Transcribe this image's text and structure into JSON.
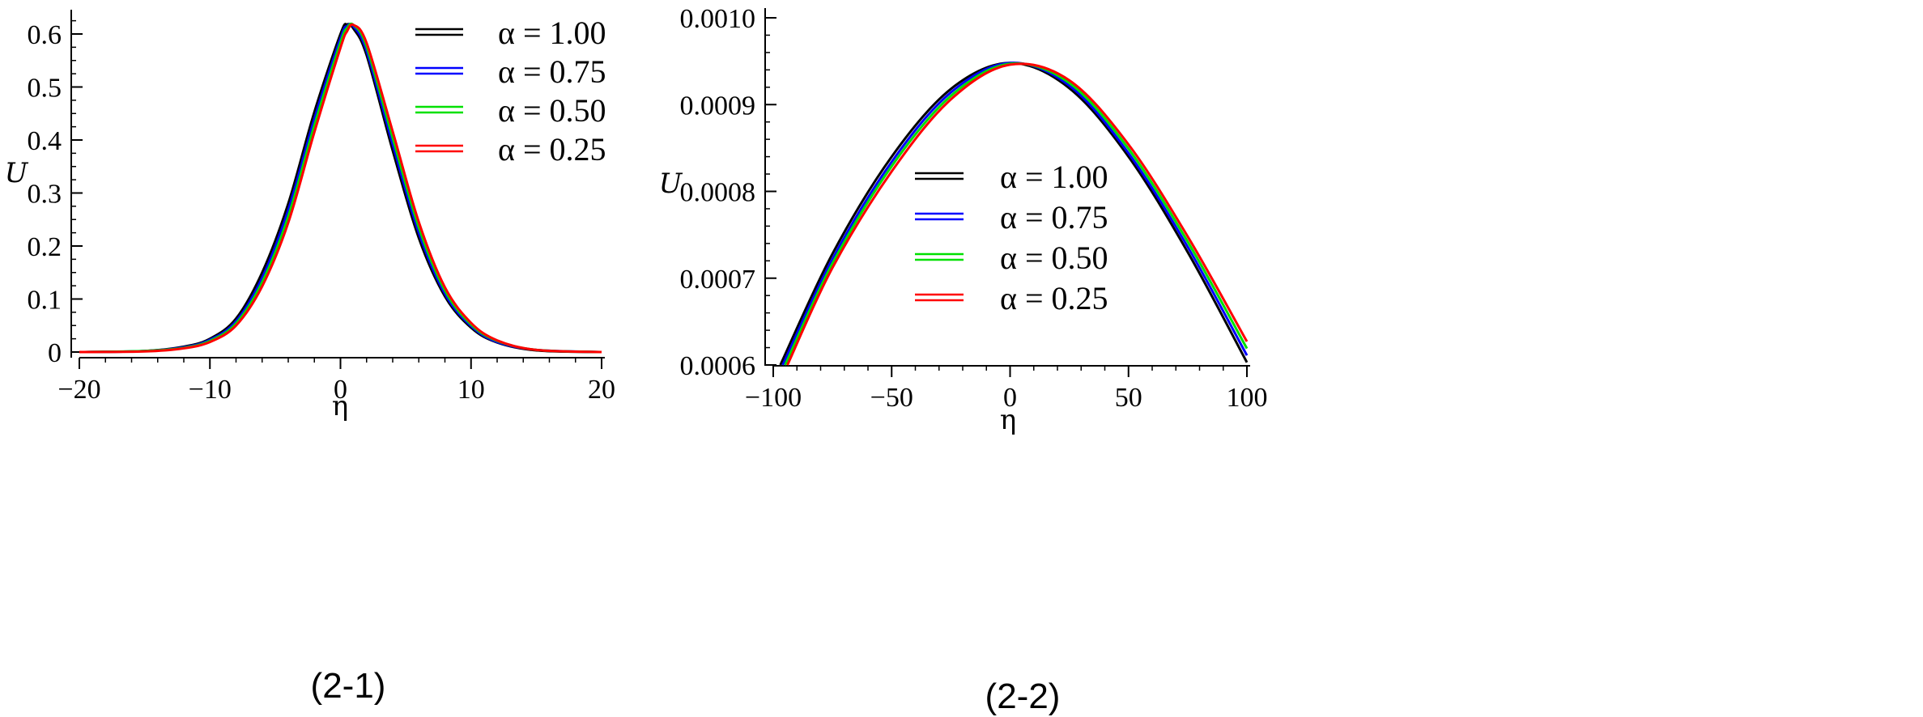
{
  "chart_data": [
    {
      "type": "line",
      "caption": "(2-1)",
      "xlabel": "η",
      "ylabel": "U",
      "xlim": [
        -20,
        20
      ],
      "ylim": [
        0,
        0.6
      ],
      "xticks": [
        {
          "value": -20,
          "label": "−20"
        },
        {
          "value": -10,
          "label": "−10"
        },
        {
          "value": 0,
          "label": "0"
        },
        {
          "value": 10,
          "label": "10"
        },
        {
          "value": 20,
          "label": "20"
        }
      ],
      "yticks": [
        {
          "value": 0,
          "label": "0"
        },
        {
          "value": 0.1,
          "label": "0.1"
        },
        {
          "value": 0.2,
          "label": "0.2"
        },
        {
          "value": 0.3,
          "label": "0.3"
        },
        {
          "value": 0.4,
          "label": "0.4"
        },
        {
          "value": 0.5,
          "label": "0.5"
        },
        {
          "value": 0.6,
          "label": "0.6"
        }
      ],
      "legend_position": "top-right",
      "series": [
        {
          "name": "α = 1.00",
          "color": "#000000",
          "x": [
            -20,
            -15,
            -12,
            -10,
            -8,
            -6,
            -4,
            -2,
            0,
            0.5,
            1,
            2,
            4,
            6,
            8,
            10,
            12,
            15,
            20
          ],
          "y": [
            0.0,
            0.002,
            0.01,
            0.025,
            0.063,
            0.15,
            0.28,
            0.453,
            0.6,
            0.618,
            0.61,
            0.56,
            0.38,
            0.215,
            0.105,
            0.046,
            0.018,
            0.003,
            0.0
          ]
        },
        {
          "name": "α = 0.75",
          "color": "#0000ff",
          "x": [
            -20,
            -15,
            -12,
            -10,
            -8,
            -6,
            -4,
            -2,
            0,
            0.5,
            1,
            2,
            4,
            6,
            8,
            10,
            12,
            15,
            20
          ],
          "y": [
            0.0,
            0.002,
            0.009,
            0.023,
            0.058,
            0.14,
            0.268,
            0.44,
            0.592,
            0.615,
            0.614,
            0.568,
            0.392,
            0.225,
            0.11,
            0.049,
            0.019,
            0.004,
            0.0
          ]
        },
        {
          "name": "α = 0.50",
          "color": "#00e000",
          "x": [
            -20,
            -15,
            -12,
            -10,
            -8,
            -6,
            -4,
            -2,
            0,
            0.5,
            1,
            2,
            4,
            6,
            8,
            10,
            12,
            15,
            20
          ],
          "y": [
            0.0,
            0.002,
            0.008,
            0.021,
            0.054,
            0.132,
            0.256,
            0.428,
            0.584,
            0.611,
            0.617,
            0.576,
            0.404,
            0.235,
            0.116,
            0.052,
            0.021,
            0.004,
            0.0
          ]
        },
        {
          "name": "α = 0.25",
          "color": "#ff0000",
          "x": [
            -20,
            -15,
            -12,
            -10,
            -8,
            -6,
            -4,
            -2,
            0,
            0.5,
            1,
            2,
            4,
            6,
            8,
            10,
            12,
            15,
            20
          ],
          "y": [
            0.0,
            0.001,
            0.007,
            0.019,
            0.05,
            0.124,
            0.244,
            0.415,
            0.574,
            0.605,
            0.617,
            0.583,
            0.416,
            0.245,
            0.122,
            0.055,
            0.022,
            0.004,
            0.0
          ]
        }
      ]
    },
    {
      "type": "line",
      "caption": "(2-2)",
      "xlabel": "η",
      "ylabel": "U",
      "xlim": [
        -100,
        100
      ],
      "ylim": [
        0.0006,
        0.001
      ],
      "xticks": [
        {
          "value": -100,
          "label": "−100"
        },
        {
          "value": -50,
          "label": "−50"
        },
        {
          "value": 0,
          "label": "0"
        },
        {
          "value": 50,
          "label": "50"
        },
        {
          "value": 100,
          "label": "100"
        }
      ],
      "yticks": [
        {
          "value": 0.0006,
          "label": "0.0006"
        },
        {
          "value": 0.0007,
          "label": "0.0007"
        },
        {
          "value": 0.0008,
          "label": "0.0008"
        },
        {
          "value": 0.0009,
          "label": "0.0009"
        },
        {
          "value": 0.001,
          "label": "0.0010"
        }
      ],
      "legend_position": "center",
      "series": [
        {
          "name": "α = 1.00",
          "color": "#000000",
          "x": [
            -97,
            -75,
            -50,
            -25,
            0,
            25,
            50,
            75,
            100
          ],
          "y": [
            0.0006,
            0.000728,
            0.00084,
            0.000918,
            0.000948,
            0.000919,
            0.00084,
            0.00073,
            0.000603
          ]
        },
        {
          "name": "α = 0.75",
          "color": "#0000ff",
          "x": [
            -96,
            -75,
            -50,
            -25,
            0,
            25,
            50,
            75,
            100
          ],
          "y": [
            0.0006,
            0.000722,
            0.000834,
            0.000914,
            0.000948,
            0.000922,
            0.000844,
            0.000736,
            0.000611
          ]
        },
        {
          "name": "α = 0.50",
          "color": "#00e000",
          "x": [
            -95,
            -75,
            -50,
            -25,
            0,
            25,
            50,
            75,
            100
          ],
          "y": [
            0.0006,
            0.000717,
            0.000829,
            0.00091,
            0.000947,
            0.000925,
            0.000849,
            0.000742,
            0.000619
          ]
        },
        {
          "name": "α = 0.25",
          "color": "#ff0000",
          "x": [
            -94,
            -75,
            -50,
            -25,
            0,
            25,
            50,
            75,
            100
          ],
          "y": [
            0.0006,
            0.000712,
            0.000823,
            0.000906,
            0.000946,
            0.000928,
            0.000854,
            0.000748,
            0.000627
          ]
        }
      ]
    }
  ]
}
